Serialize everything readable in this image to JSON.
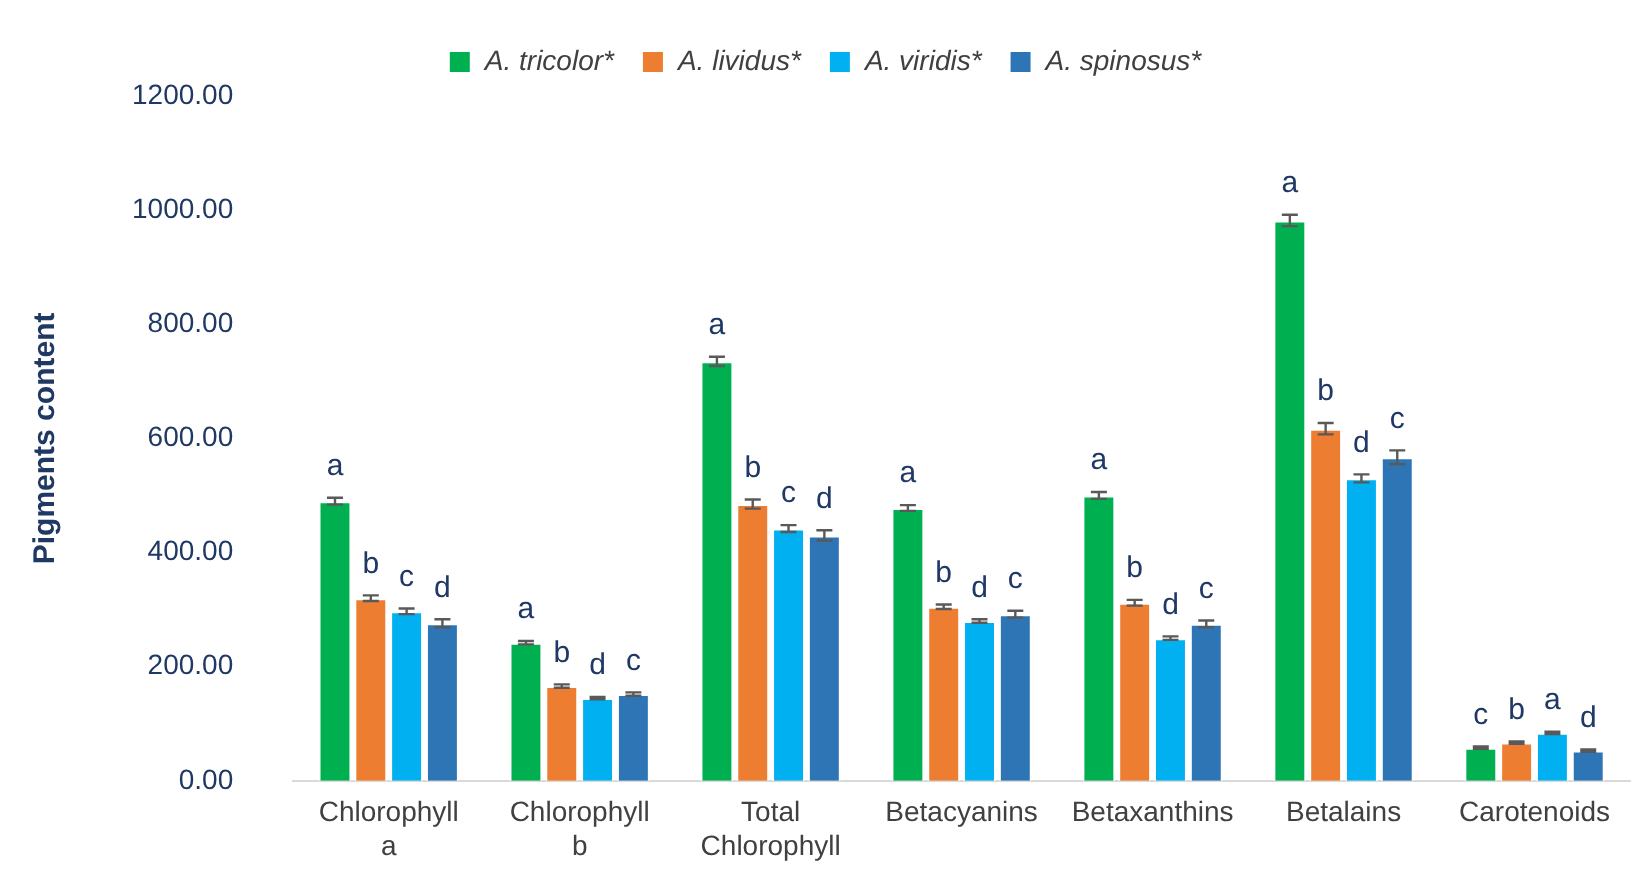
{
  "chart_data": {
    "type": "bar",
    "ylabel": "Pigments content",
    "categories": [
      "Chlorophyll a",
      "Chlorophyll b",
      "Total Chlorophyll",
      "Betacyanins",
      "Betaxanthins",
      "Betalains",
      "Carotenoids"
    ],
    "series": [
      {
        "name": "A. tricolor*",
        "color": "#00b050",
        "values": [
          490,
          242,
          735,
          478,
          500,
          982,
          58
        ],
        "errors": [
          6,
          3,
          8,
          5,
          6,
          10,
          2
        ],
        "value_labels": [
          "a",
          "a",
          "a",
          "a",
          "a",
          "a",
          "c"
        ]
      },
      {
        "name": "A. lividus*",
        "color": "#ed7d31",
        "values": [
          320,
          166,
          485,
          305,
          312,
          617,
          67
        ],
        "errors": [
          5,
          3,
          8,
          4,
          5,
          10,
          2
        ],
        "value_labels": [
          "b",
          "b",
          "b",
          "b",
          "b",
          "b",
          "b"
        ]
      },
      {
        "name": "A. viridis*",
        "color": "#00b0f0",
        "values": [
          297,
          145,
          442,
          280,
          250,
          530,
          84
        ],
        "errors": [
          5,
          2,
          6,
          3,
          3,
          7,
          2
        ],
        "value_labels": [
          "c",
          "d",
          "c",
          "d",
          "d",
          "d",
          "a"
        ]
      },
      {
        "name": "A. spinosus*",
        "color": "#2e75b6",
        "values": [
          276,
          152,
          430,
          292,
          275,
          567,
          53
        ],
        "errors": [
          7,
          3,
          9,
          6,
          6,
          12,
          2
        ],
        "value_labels": [
          "d",
          "c",
          "d",
          "c",
          "c",
          "c",
          "d"
        ]
      }
    ],
    "ylim": [
      0,
      1200
    ],
    "yticks": [
      {
        "value": 0,
        "label": "0.00"
      },
      {
        "value": 200,
        "label": "200.00"
      },
      {
        "value": 400,
        "label": "400.00"
      },
      {
        "value": 600,
        "label": "600.00"
      },
      {
        "value": 800,
        "label": "800.00"
      },
      {
        "value": 1000,
        "label": "1000.00"
      },
      {
        "value": 1200,
        "label": "1200.00"
      }
    ],
    "grid": false,
    "legend": "top"
  }
}
